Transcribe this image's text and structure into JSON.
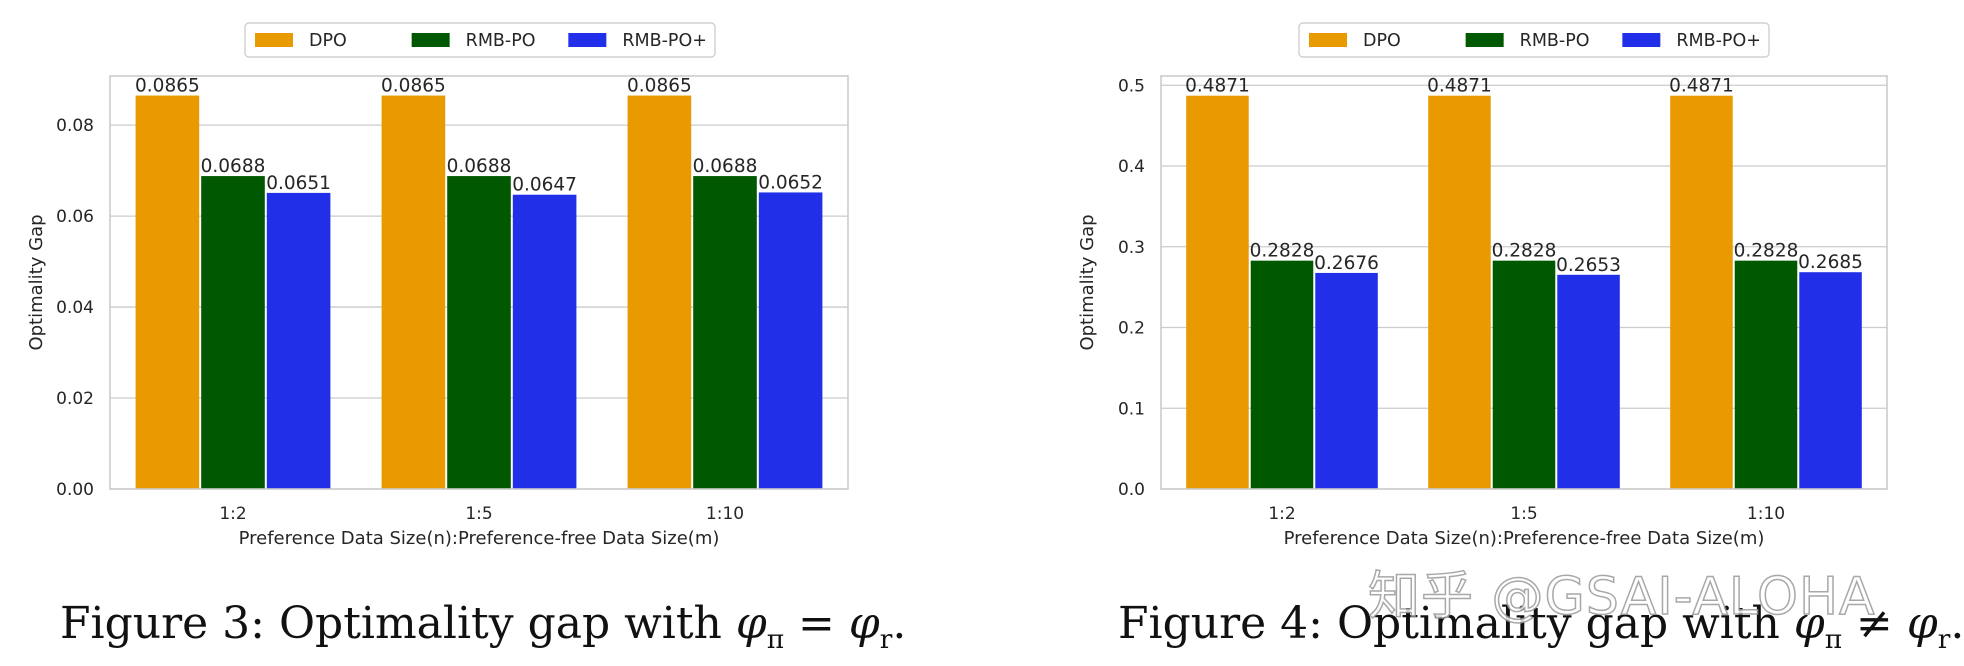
{
  "chart_data": [
    {
      "type": "bar",
      "categories": [
        "1:2",
        "1:5",
        "1:10"
      ],
      "series": [
        {
          "name": "DPO",
          "values": [
            0.0865,
            0.0865,
            0.0865
          ],
          "labels": [
            "0.0865",
            "0.0865",
            "0.0865"
          ]
        },
        {
          "name": "RMB-PO",
          "values": [
            0.0688,
            0.0688,
            0.0688
          ],
          "labels": [
            "0.0688",
            "0.0688",
            "0.0688"
          ]
        },
        {
          "name": "RMB-PO+",
          "values": [
            0.0651,
            0.0647,
            0.0652
          ],
          "labels": [
            "0.0651",
            "0.0647",
            "0.0652"
          ]
        }
      ],
      "xlabel": "Preference Data Size(n):Preference-free Data Size(m)",
      "ylabel": "Optimality Gap",
      "ylim": [
        0,
        0.0908
      ],
      "yticks": [
        0,
        0.02,
        0.04,
        0.06,
        0.08
      ],
      "ytick_labels": [
        "0.00",
        "0.02",
        "0.04",
        "0.06",
        "0.08"
      ],
      "grid": true,
      "legend_position": "top-center"
    },
    {
      "type": "bar",
      "categories": [
        "1:2",
        "1:5",
        "1:10"
      ],
      "series": [
        {
          "name": "DPO",
          "values": [
            0.4871,
            0.4871,
            0.4871
          ],
          "labels": [
            "0.4871",
            "0.4871",
            "0.4871"
          ]
        },
        {
          "name": "RMB-PO",
          "values": [
            0.2828,
            0.2828,
            0.2828
          ],
          "labels": [
            "0.2828",
            "0.2828",
            "0.2828"
          ]
        },
        {
          "name": "RMB-PO+",
          "values": [
            0.2676,
            0.2653,
            0.2685
          ],
          "labels": [
            "0.2676",
            "0.2653",
            "0.2685"
          ]
        }
      ],
      "xlabel": "Preference Data Size(n):Preference-free Data Size(m)",
      "ylabel": "Optimality Gap",
      "ylim": [
        0,
        0.5115
      ],
      "yticks": [
        0,
        0.1,
        0.2,
        0.3,
        0.4,
        0.5
      ],
      "ytick_labels": [
        "0.0",
        "0.1",
        "0.2",
        "0.3",
        "0.4",
        "0.5"
      ],
      "grid": true,
      "legend_position": "top-center"
    }
  ],
  "colors": {
    "DPO": "#e89a00",
    "RMB-PO": "#005900",
    "RMB-PO+": "#2130e8"
  },
  "captions": {
    "left": "Figure 3: Optimality gap with φπ = φr.",
    "right": "Figure 4: Optimality gap with φπ ≠ φr."
  },
  "watermark": "知乎 @GSAI-ALOHA"
}
